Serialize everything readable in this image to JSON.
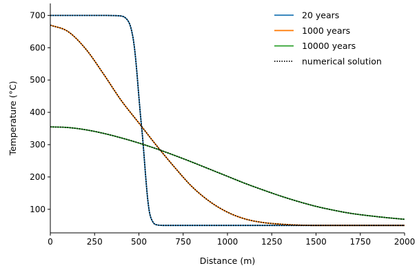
{
  "chart_data": {
    "type": "line",
    "title": "",
    "xlabel": "Distance (m)",
    "ylabel": "Temperature (°C)",
    "xlim": [
      0,
      2000
    ],
    "ylim": [
      27,
      737
    ],
    "xticks": [
      "0",
      "250",
      "500",
      "750",
      "1000",
      "1250",
      "1500",
      "1750",
      "2000"
    ],
    "yticks": [
      "100",
      "200",
      "300",
      "400",
      "500",
      "600",
      "700"
    ],
    "legend_position": "top-right",
    "grid": false,
    "series": [
      {
        "name": "20 years",
        "color": "#1f77b4",
        "x": [
          0,
          100,
          200,
          300,
          350,
          400,
          420,
          440,
          450,
          460,
          470,
          480,
          490,
          500,
          510,
          520,
          530,
          540,
          550,
          560,
          580,
          600,
          650,
          700,
          1000,
          1500,
          2000
        ],
        "y": [
          700,
          700,
          700,
          700,
          699.5,
          698,
          694,
          682,
          670,
          650,
          620,
          575,
          515,
          448,
          385,
          328,
          260,
          190,
          130,
          90,
          60,
          52,
          50,
          50,
          50,
          50,
          50
        ]
      },
      {
        "name": "1000 years",
        "color": "#ff7f0e",
        "x": [
          0,
          100,
          200,
          300,
          400,
          500,
          600,
          700,
          800,
          900,
          1000,
          1100,
          1200,
          1300,
          1400,
          1500,
          1750,
          2000
        ],
        "y": [
          670,
          650,
          596,
          519,
          437,
          367,
          297,
          231,
          170,
          124,
          91,
          70,
          59,
          54,
          51,
          50,
          50,
          50
        ]
      },
      {
        "name": "10000 years",
        "color": "#2ca02c",
        "x": [
          0,
          100,
          200,
          300,
          400,
          500,
          600,
          700,
          800,
          900,
          1000,
          1100,
          1200,
          1300,
          1400,
          1500,
          1600,
          1700,
          1800,
          1900,
          2000
        ],
        "y": [
          355,
          353,
          346,
          335,
          321,
          305,
          287,
          267,
          246,
          224,
          202,
          180,
          160,
          141,
          124,
          109,
          97,
          87,
          80,
          74,
          69
        ]
      }
    ],
    "overlay": {
      "name": "numerical solution",
      "style": "dotted",
      "color": "#000000",
      "applies_to": [
        "20 years",
        "1000 years",
        "10000 years"
      ]
    }
  }
}
